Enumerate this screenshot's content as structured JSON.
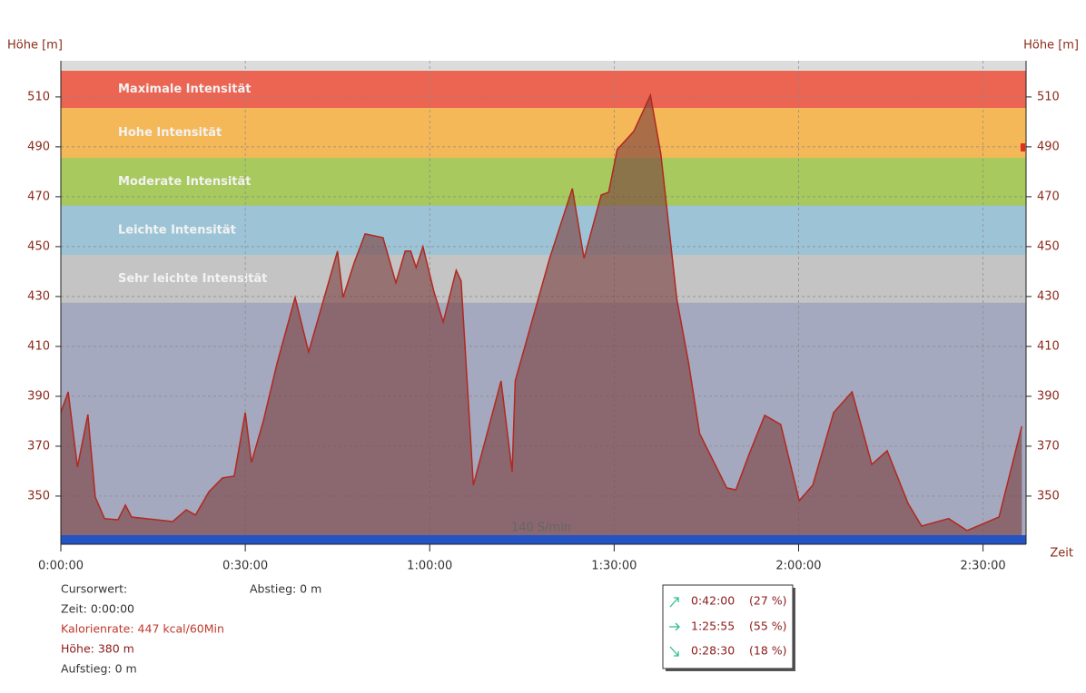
{
  "chart_data": {
    "type": "area",
    "y_label": "Höhe [m]",
    "y2_label": "Höhe [m]",
    "x_label": "Zeit",
    "xlim": [
      0,
      157
    ],
    "ylim": [
      330.7,
      524.5
    ],
    "xticks": [
      {
        "value": 0,
        "label": "0:00:00"
      },
      {
        "value": 30,
        "label": "0:30:00"
      },
      {
        "value": 60,
        "label": "1:00:00"
      },
      {
        "value": 90,
        "label": "1:30:00"
      },
      {
        "value": 120,
        "label": "2:00:00"
      },
      {
        "value": 150,
        "label": "2:30:00"
      }
    ],
    "yticks": [
      350,
      370,
      390,
      410,
      430,
      450,
      470,
      490,
      510
    ],
    "grid": true,
    "bands": [
      {
        "label": "Maximale Intensität",
        "from": 505.6,
        "to": 520.5,
        "color": "#ec6452"
      },
      {
        "label": "Hohe Intensität",
        "from": 485.6,
        "to": 505.6,
        "color": "#f4b858"
      },
      {
        "label": "Moderate Intensität",
        "from": 466.4,
        "to": 485.6,
        "color": "#a7c95e"
      },
      {
        "label": "Leichte Intensität",
        "from": 446.7,
        "to": 466.4,
        "color": "#9dc4d6"
      },
      {
        "label": "Sehr leichte Intensität",
        "from": 427.5,
        "to": 446.7,
        "color": "#c4c4c4"
      }
    ],
    "bottom_label": "140 S/min",
    "series": [
      {
        "name": "Höhe",
        "color": "#b2281e",
        "x": [
          0,
          1.2,
          2.7,
          4.4,
          5.6,
          7.1,
          9.3,
          10.5,
          11.5,
          18.2,
          20.4,
          21.9,
          24.1,
          26.3,
          28.2,
          30,
          31,
          32.9,
          35.2,
          38.1,
          40.3,
          45,
          45.9,
          47.7,
          49.5,
          52.4,
          54.5,
          56,
          56.9,
          57.8,
          58.9,
          60.7,
          62.2,
          64.3,
          65.1,
          67.1,
          71.6,
          73.4,
          73.9,
          79.5,
          83.2,
          85.1,
          87.9,
          89.1,
          90.5,
          93.2,
          95.9,
          97.6,
          100.2,
          102.1,
          103.9,
          108.3,
          109.8,
          112,
          114.5,
          117.1,
          120.1,
          122.3,
          125.7,
          128.7,
          131.9,
          134.4,
          137.8,
          140,
          144.4,
          147.4,
          152.6,
          156.3
        ],
        "values": [
          383.5,
          391.8,
          361.6,
          382.7,
          349.6,
          341,
          340.5,
          346.4,
          341.6,
          339.8,
          344.5,
          342.4,
          351.8,
          357.3,
          358,
          383.5,
          363.5,
          379.8,
          403.5,
          429.6,
          407.8,
          448.2,
          429.6,
          443.5,
          455.1,
          453.6,
          435.5,
          448.2,
          448.2,
          441.6,
          450,
          431.8,
          419.8,
          440.5,
          436.2,
          354.4,
          396.2,
          359.8,
          396.2,
          445.3,
          473.3,
          445.3,
          470.7,
          471.8,
          488.9,
          496.2,
          510.7,
          487.1,
          428.9,
          403.5,
          375.1,
          353.3,
          352.5,
          367.1,
          382.4,
          378.7,
          348.2,
          354.4,
          383.5,
          391.8,
          362.7,
          368.2,
          347.1,
          338,
          341,
          336.2,
          341.6,
          378
        ]
      }
    ]
  },
  "info": {
    "cursor": "Cursorwert:",
    "time": "Zeit: 0:00:00",
    "calories": "Kalorienrate: 447 kcal/60Min",
    "height": "Höhe:  380 m",
    "ascent": "Aufstieg: 0 m",
    "descent": "Abstieg: 0 m"
  },
  "summary": [
    {
      "time": "0:42:00",
      "percent": "(27 %)"
    },
    {
      "time": "1:25:55",
      "percent": "(55 %)"
    },
    {
      "time": "0:28:30",
      "percent": "(18 %)"
    }
  ]
}
